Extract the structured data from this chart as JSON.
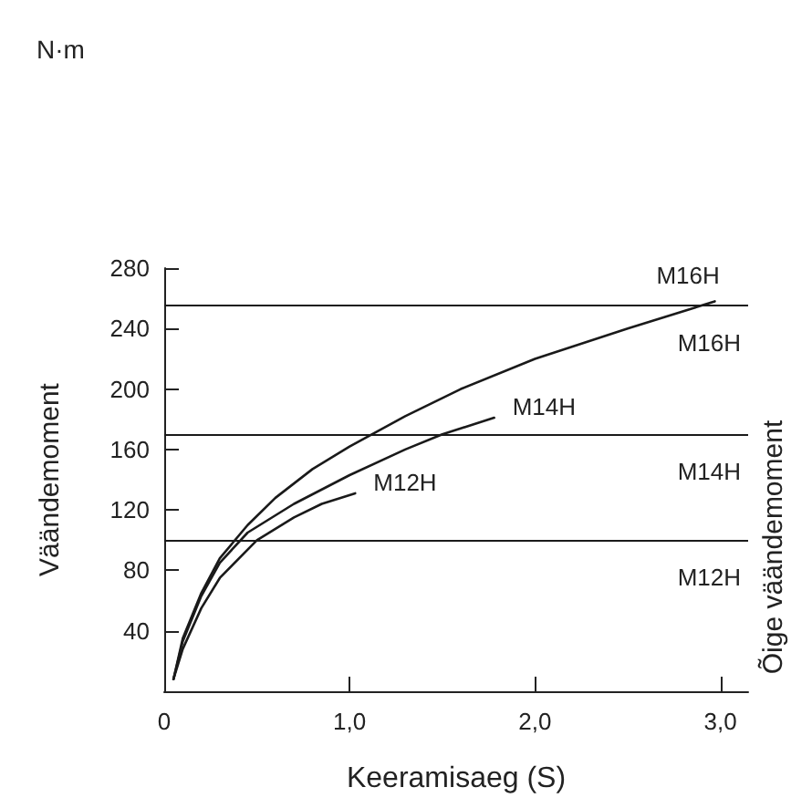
{
  "chart_data": {
    "type": "line",
    "xlabel": "Keeramisaeg (S)",
    "ylabel": "Väändemoment",
    "y2label": "Õige väändemoment",
    "annotations": [
      "N·m"
    ],
    "legend": false,
    "grid": false,
    "marker": "none",
    "line_style": "solid",
    "xlim": [
      0,
      3.15
    ],
    "xticks": [
      0,
      {
        "value": 1,
        "label": "1,0"
      },
      {
        "value": 2,
        "label": "2,0"
      },
      {
        "value": 3,
        "label": "3,0"
      }
    ],
    "ylim": [
      0,
      280
    ],
    "yticks": [
      40,
      80,
      120,
      160,
      200,
      240,
      280
    ],
    "series": [
      {
        "name": "M16H",
        "color": "#1a1a1a",
        "x": [
          0.05,
          0.1,
          0.2,
          0.3,
          0.45,
          0.6,
          0.8,
          1.0,
          1.3,
          1.6,
          2.0,
          2.5,
          2.97
        ],
        "values": [
          8,
          35,
          65,
          88,
          110,
          128,
          147,
          162,
          182,
          200,
          220,
          240,
          258
        ]
      },
      {
        "name": "M14H",
        "color": "#1a1a1a",
        "x": [
          0.05,
          0.1,
          0.2,
          0.3,
          0.45,
          0.7,
          1.0,
          1.3,
          1.5,
          1.78
        ],
        "values": [
          8,
          33,
          63,
          85,
          105,
          124,
          143,
          160,
          170,
          181
        ]
      },
      {
        "name": "M12H",
        "color": "#1a1a1a",
        "x": [
          0.05,
          0.1,
          0.2,
          0.3,
          0.5,
          0.7,
          0.85,
          1.03
        ],
        "values": [
          8,
          28,
          55,
          75,
          100,
          115,
          124,
          131
        ]
      }
    ],
    "ref_lines": [
      {
        "axis": "y",
        "value": 255,
        "label": "M16H",
        "color": "#1a1a1a"
      },
      {
        "axis": "y",
        "value": 170,
        "label": "M14H",
        "color": "#1a1a1a"
      },
      {
        "axis": "y",
        "value": 100,
        "label": "M12H",
        "color": "#1a1a1a"
      }
    ]
  }
}
